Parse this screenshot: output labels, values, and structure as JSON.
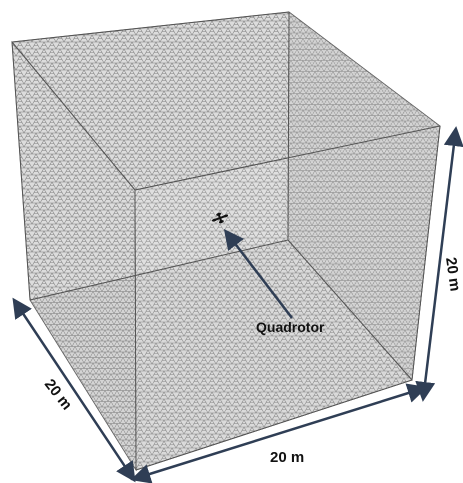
{
  "colors": {
    "background": "#ffffff",
    "mesh_line": "#8a8a8a",
    "mesh_face_fill": "#d9d9d9",
    "edge_line": "#555555",
    "arrow": "#2f3e55",
    "text": "#111111"
  },
  "labels": {
    "callout": "Quadrotor",
    "dim_height": "20 m",
    "dim_width": "20 m",
    "dim_depth": "20 m"
  },
  "icons": {
    "quadrotor": "quadrotor-icon"
  }
}
